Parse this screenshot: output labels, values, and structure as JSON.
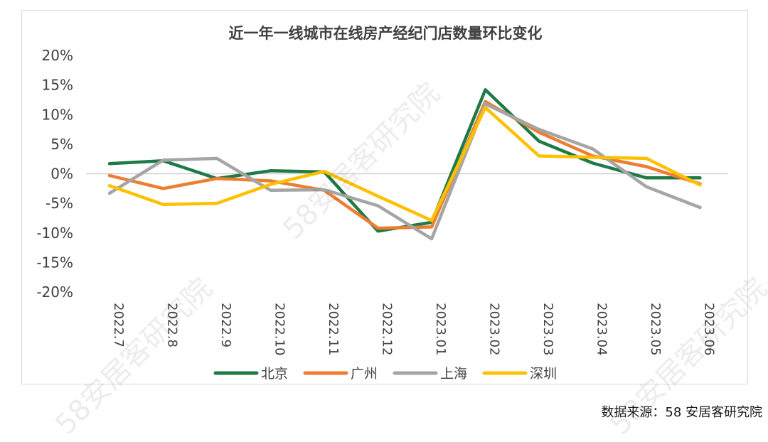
{
  "chart_data": {
    "type": "line",
    "title": "近一年一线城市在线房产经纪门店数量环比变化",
    "categories": [
      "2022.7",
      "2022.8",
      "2022.9",
      "2022.10",
      "2022.11",
      "2022.12",
      "2023.01",
      "2023.02",
      "2023.03",
      "2023.04",
      "2023.05",
      "2023.06"
    ],
    "y_ticks": [
      "20%",
      "15%",
      "10%",
      "5%",
      "0%",
      "-5%",
      "-10%",
      "-15%",
      "-20%"
    ],
    "ylim": [
      -20,
      20
    ],
    "y_unit": "%",
    "grid": false,
    "legend_position": "bottom",
    "series": [
      {
        "name": "北京",
        "color": "#1e7a47",
        "values": [
          1.7,
          2.2,
          -0.8,
          0.5,
          0.3,
          -9.7,
          -8.2,
          14.2,
          5.5,
          1.8,
          -0.7,
          -0.7
        ]
      },
      {
        "name": "广州",
        "color": "#ed7d31",
        "values": [
          -0.3,
          -2.5,
          -0.8,
          -1.2,
          -2.8,
          -9.2,
          -9.0,
          12.2,
          7.0,
          3.0,
          1.2,
          -1.7
        ]
      },
      {
        "name": "上海",
        "color": "#a5a5a5",
        "values": [
          -3.3,
          2.3,
          2.6,
          -2.8,
          -2.7,
          -5.4,
          -11.0,
          11.8,
          7.5,
          4.2,
          -2.2,
          -5.7
        ]
      },
      {
        "name": "深圳",
        "color": "#ffc000",
        "values": [
          -2.0,
          -5.2,
          -5.0,
          -1.8,
          0.4,
          -3.8,
          -7.9,
          11.2,
          3.0,
          2.8,
          2.6,
          -1.9
        ]
      }
    ]
  },
  "source": "数据来源：58 安居客研究院",
  "watermark": "58安居客研究院"
}
